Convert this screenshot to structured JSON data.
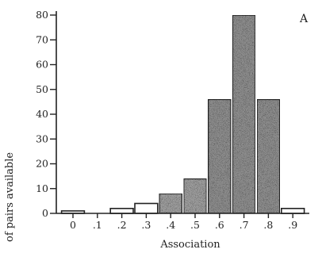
{
  "chart_data": {
    "type": "bar",
    "panel_label": "A",
    "xlabel": "Association",
    "ylabel": "of pairs available",
    "x_tick_labels": [
      "0",
      ".1",
      ".2",
      ".3",
      ".4",
      ".5",
      ".6",
      ".7",
      ".8",
      ".9"
    ],
    "y_tick_labels": [
      "0",
      "10",
      "20",
      "30",
      "40",
      "50",
      "60",
      "70",
      "80"
    ],
    "ylim": [
      0,
      80
    ],
    "xlim": [
      -0.05,
      1.0
    ],
    "bar_width": 0.1,
    "bars": [
      {
        "x": 0.0,
        "value": 1,
        "fill": "#ffffff"
      },
      {
        "x": 0.1,
        "value": 0,
        "fill": "#ffffff"
      },
      {
        "x": 0.2,
        "value": 2,
        "fill": "#ffffff"
      },
      {
        "x": 0.3,
        "value": 4,
        "fill": "#ffffff"
      },
      {
        "x": 0.4,
        "value": 8,
        "fill": "#9a9a9a"
      },
      {
        "x": 0.5,
        "value": 14,
        "fill": "#9a9a9a"
      },
      {
        "x": 0.6,
        "value": 46,
        "fill": "#8a8a8a"
      },
      {
        "x": 0.7,
        "value": 80,
        "fill": "#8a8a8a"
      },
      {
        "x": 0.8,
        "value": 46,
        "fill": "#8a8a8a"
      },
      {
        "x": 0.9,
        "value": 2,
        "fill": "#ffffff"
      }
    ],
    "grid": false
  }
}
